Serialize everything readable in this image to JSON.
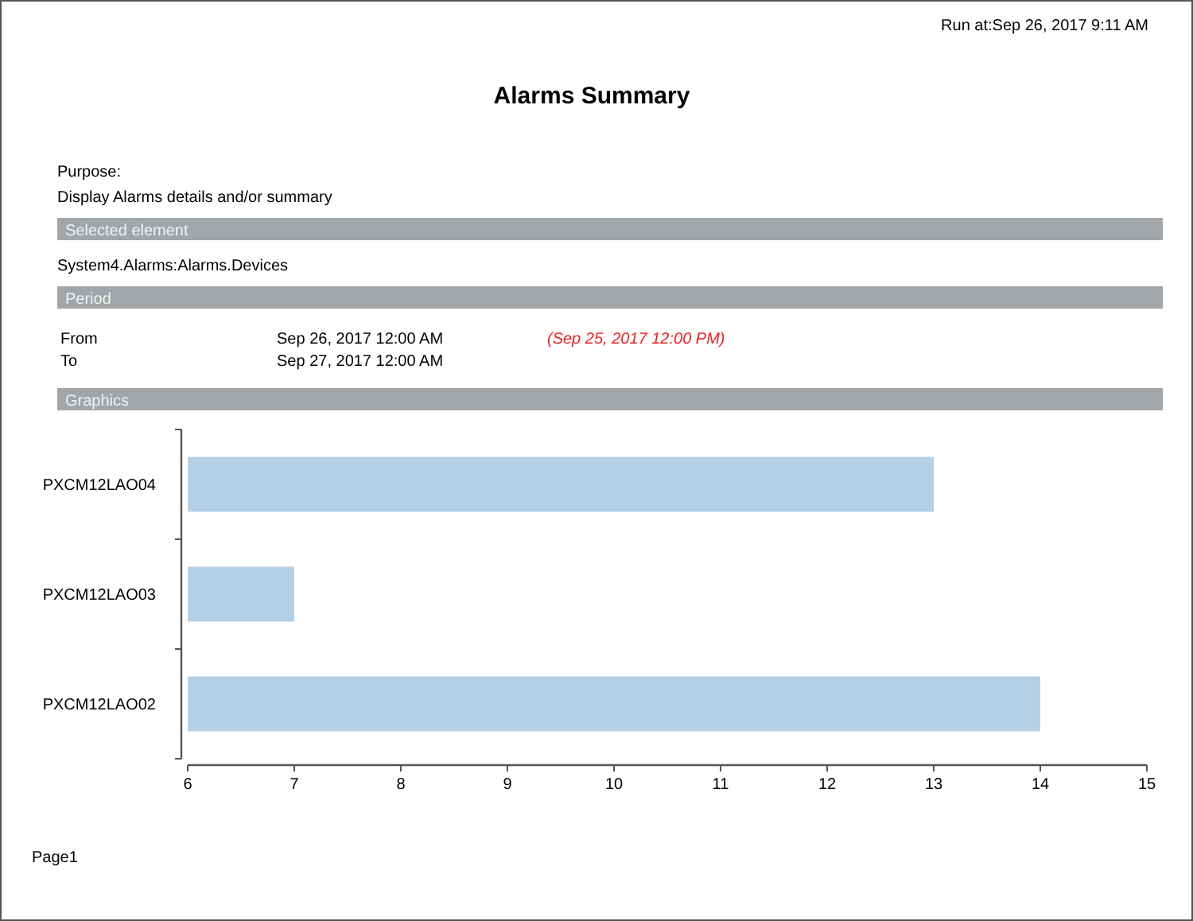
{
  "chart_data": {
    "type": "bar",
    "orientation": "horizontal",
    "title": "Alarms Summary",
    "categories": [
      "PXCM12LAO04",
      "PXCM12LAO03",
      "PXCM12LAO02"
    ],
    "values": [
      13,
      7,
      14
    ],
    "color": "#b5d0e5",
    "xlim": [
      6,
      15
    ],
    "xticks": [
      6,
      7,
      8,
      9,
      10,
      11,
      12,
      13,
      14,
      15
    ],
    "grid": false,
    "annotations": [
      "Run at:Sep 26, 2017 9:11 AM",
      "Purpose:",
      "Display Alarms details and/or summary",
      "Selected element",
      "System4.Alarms:Alarms.Devices",
      "Period",
      "From",
      "Sep 26, 2017 12:00 AM",
      "(Sep 25, 2017 12:00 PM)",
      "To",
      "Sep 27, 2017 12:00 AM",
      "Graphics",
      "Page1"
    ]
  }
}
